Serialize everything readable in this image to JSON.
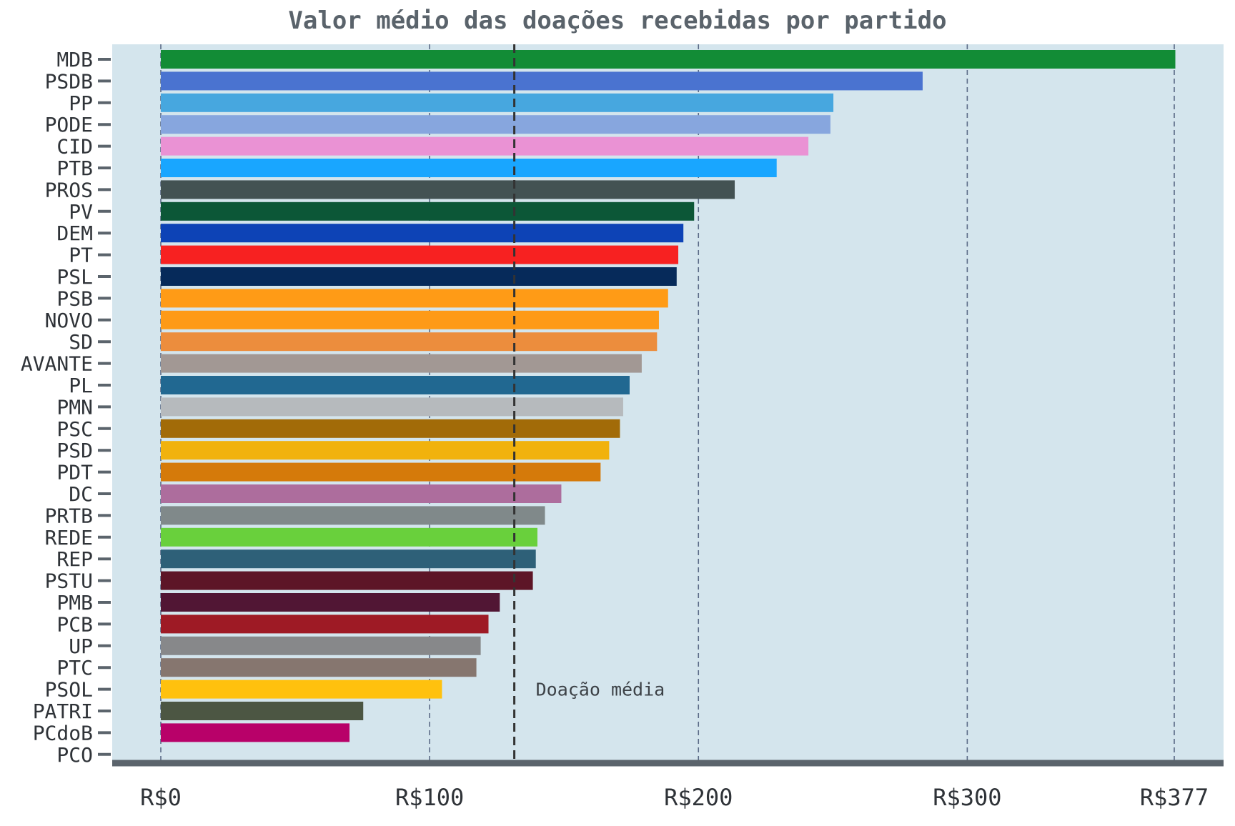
{
  "chart_data": {
    "type": "bar",
    "orientation": "horizontal",
    "title": "Valor médio das doações recebidas por partido",
    "xlabel": "",
    "ylabel": "",
    "xlim": [
      -18,
      397
    ],
    "grid": true,
    "x_ticks": [
      {
        "value": 0,
        "label": "R$0"
      },
      {
        "value": 100,
        "label": "R$100"
      },
      {
        "value": 200,
        "label": "R$200"
      },
      {
        "value": 300,
        "label": "R$300"
      },
      {
        "value": 377,
        "label": "R$377"
      }
    ],
    "reference_line": {
      "value": 131.5,
      "label": "Doação média"
    },
    "categories": [
      "MDB",
      "PSDB",
      "PP",
      "PODE",
      "CID",
      "PTB",
      "PROS",
      "PV",
      "DEM",
      "PT",
      "PSL",
      "PSB",
      "NOVO",
      "SD",
      "AVANTE",
      "PL",
      "PMN",
      "PSC",
      "PSD",
      "PDT",
      "DC",
      "PRTB",
      "REDE",
      "REP",
      "PSTU",
      "PMB",
      "PCB",
      "UP",
      "PTC",
      "PSOL",
      "PATRI",
      "PCdoB",
      "PCO"
    ],
    "values": [
      377.4,
      283.4,
      250.2,
      249.1,
      240.9,
      229.1,
      213.5,
      198.4,
      194.4,
      192.5,
      191.9,
      188.7,
      185.3,
      184.6,
      178.9,
      174.4,
      172.0,
      170.8,
      166.8,
      163.6,
      149.0,
      142.9,
      140.1,
      139.5,
      138.4,
      126.1,
      121.9,
      119.0,
      117.4,
      104.6,
      75.3,
      70.2,
      0
    ],
    "colors": [
      "#128c36",
      "#4a73d0",
      "#47a7df",
      "#87a6de",
      "#ea92d4",
      "#19a6ff",
      "#435253",
      "#0c5737",
      "#0d43b6",
      "#f72121",
      "#062a5a",
      "#ff9b16",
      "#fe9a17",
      "#ec8d3d",
      "#a29894",
      "#216891",
      "#b6babd",
      "#a26b08",
      "#f1b20d",
      "#d57a0a",
      "#ad6d9d",
      "#80898a",
      "#69d03c",
      "#2e6078",
      "#5d1527",
      "#511634",
      "#9e1a25",
      "#87888a",
      "#86766f",
      "#ffc10e",
      "#4c5643",
      "#b80169",
      "#b80169"
    ]
  },
  "style": {
    "plot_background": "#d4e5ed",
    "axis_color": "#5b646c",
    "grid_color": "#5a6a86",
    "reference_color": "#333333"
  }
}
